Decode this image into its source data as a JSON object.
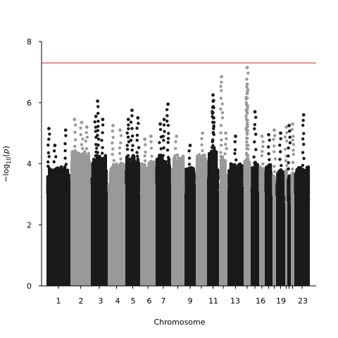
{
  "chart_data": {
    "type": "scatter",
    "subtype": "manhattan",
    "xlabel": "Chromosome",
    "ylabel": "−log10(p)",
    "ylim": [
      0,
      8
    ],
    "yticks": [
      0,
      2,
      4,
      6,
      8
    ],
    "threshold": 7.3,
    "threshold_color": "#d62728",
    "point_colors": [
      "#1a1a1a",
      "#999999"
    ],
    "x_tick_labels": [
      "1",
      "2",
      "3",
      "4",
      "5",
      "6",
      "7",
      "9",
      "11",
      "13",
      "16",
      "19",
      "23"
    ],
    "chromosomes": [
      {
        "chr": "1",
        "color": "dark",
        "baseline_max": 3.9,
        "peaks": [
          {
            "x": 0.1,
            "y": 5.15
          },
          {
            "x": 0.35,
            "y": 4.6
          },
          {
            "x": 0.8,
            "y": 5.1
          }
        ]
      },
      {
        "chr": "2",
        "color": "light",
        "baseline_max": 4.4,
        "peaks": [
          {
            "x": 0.2,
            "y": 5.45
          },
          {
            "x": 0.55,
            "y": 5.35
          },
          {
            "x": 0.8,
            "y": 5.2
          }
        ]
      },
      {
        "chr": "3",
        "color": "dark",
        "baseline_max": 4.3,
        "peaks": [
          {
            "x": 0.4,
            "y": 6.05
          },
          {
            "x": 0.3,
            "y": 5.55
          },
          {
            "x": 0.7,
            "y": 5.45
          }
        ]
      },
      {
        "chr": "4",
        "color": "light",
        "baseline_max": 4.0,
        "peaks": [
          {
            "x": 0.3,
            "y": 5.25
          },
          {
            "x": 0.7,
            "y": 5.1
          }
        ]
      },
      {
        "chr": "5",
        "color": "dark",
        "baseline_max": 4.3,
        "peaks": [
          {
            "x": 0.45,
            "y": 5.75
          },
          {
            "x": 0.2,
            "y": 5.45
          },
          {
            "x": 0.85,
            "y": 5.5
          }
        ]
      },
      {
        "chr": "6",
        "color": "light",
        "baseline_max": 4.1,
        "peaks": [
          {
            "x": 0.3,
            "y": 4.8
          },
          {
            "x": 0.7,
            "y": 4.9
          }
        ]
      },
      {
        "chr": "7",
        "color": "dark",
        "baseline_max": 4.3,
        "peaks": [
          {
            "x": 0.3,
            "y": 5.3
          },
          {
            "x": 0.55,
            "y": 5.45
          },
          {
            "x": 0.8,
            "y": 5.95
          }
        ]
      },
      {
        "chr": "8",
        "color": "light",
        "baseline_max": 4.3,
        "peaks": [
          {
            "x": 0.4,
            "y": 4.9
          }
        ]
      },
      {
        "chr": "9",
        "color": "dark",
        "baseline_max": 3.9,
        "peaks": [
          {
            "x": 0.5,
            "y": 4.6
          }
        ]
      },
      {
        "chr": "10",
        "color": "light",
        "baseline_max": 4.3,
        "peaks": [
          {
            "x": 0.6,
            "y": 5.0
          }
        ]
      },
      {
        "chr": "11",
        "color": "dark",
        "baseline_max": 4.5,
        "peaks": [
          {
            "x": 0.5,
            "y": 6.25
          },
          {
            "x": 0.52,
            "y": 6.05
          },
          {
            "x": 0.48,
            "y": 5.85
          }
        ]
      },
      {
        "chr": "12",
        "color": "light",
        "baseline_max": 4.3,
        "peaks": [
          {
            "x": 0.3,
            "y": 6.85
          },
          {
            "x": 0.8,
            "y": 5.0
          }
        ]
      },
      {
        "chr": "13",
        "color": "dark",
        "baseline_max": 4.0,
        "peaks": [
          {
            "x": 0.5,
            "y": 4.9
          }
        ]
      },
      {
        "chr": "14",
        "color": "light",
        "baseline_max": 4.2,
        "peaks": [
          {
            "x": 0.5,
            "y": 7.15
          },
          {
            "x": 0.5,
            "y": 6.6
          },
          {
            "x": 0.5,
            "y": 6.3
          }
        ]
      },
      {
        "chr": "15",
        "color": "dark",
        "baseline_max": 4.1,
        "peaks": [
          {
            "x": 0.5,
            "y": 5.7
          }
        ]
      },
      {
        "chr": "16",
        "color": "light",
        "baseline_max": 4.0,
        "peaks": [
          {
            "x": 0.5,
            "y": 4.9
          }
        ]
      },
      {
        "chr": "17",
        "color": "dark",
        "baseline_max": 4.0,
        "peaks": [
          {
            "x": 0.5,
            "y": 4.95
          }
        ]
      },
      {
        "chr": "18",
        "color": "light",
        "baseline_max": 3.9,
        "peaks": [
          {
            "x": 0.5,
            "y": 5.1
          }
        ]
      },
      {
        "chr": "19",
        "color": "dark",
        "baseline_max": 3.8,
        "peaks": [
          {
            "x": 0.5,
            "y": 5.0
          }
        ]
      },
      {
        "chr": "20",
        "color": "light",
        "baseline_max": 3.8,
        "peaks": [
          {
            "x": 0.5,
            "y": 5.2
          }
        ]
      },
      {
        "chr": "21",
        "color": "dark",
        "baseline_max": 3.6,
        "peaks": [
          {
            "x": 0.5,
            "y": 5.25
          }
        ]
      },
      {
        "chr": "22",
        "color": "light",
        "baseline_max": 3.8,
        "peaks": [
          {
            "x": 0.5,
            "y": 5.3
          }
        ]
      },
      {
        "chr": "23",
        "color": "dark",
        "baseline_max": 3.9,
        "peaks": [
          {
            "x": 0.6,
            "y": 5.6
          }
        ]
      }
    ]
  }
}
